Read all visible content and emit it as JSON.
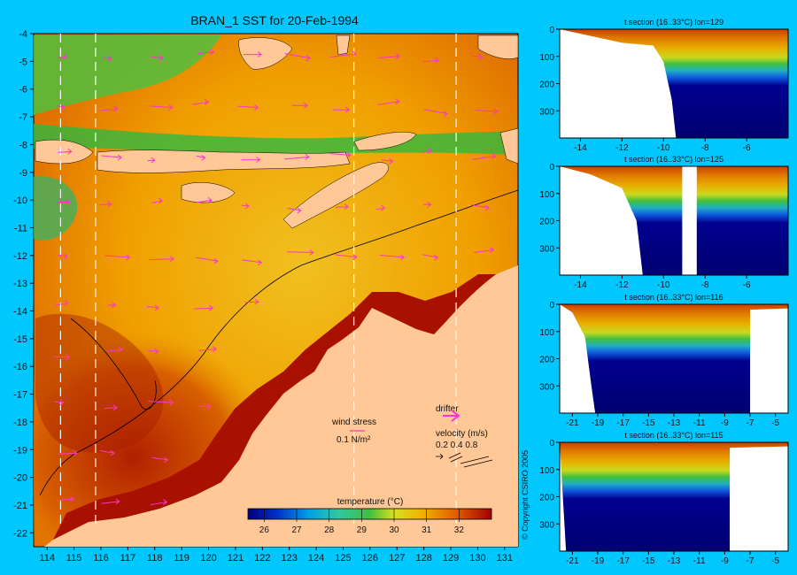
{
  "main_map": {
    "title": "BRAN_1 SST for 20-Feb-1994",
    "lon_ticks": [
      114,
      115,
      116,
      117,
      118,
      119,
      120,
      121,
      122,
      123,
      124,
      125,
      126,
      127,
      128,
      129,
      130,
      131
    ],
    "lat_ticks": [
      -4,
      -5,
      -6,
      -7,
      -8,
      -9,
      -10,
      -11,
      -12,
      -13,
      -14,
      -15,
      -16,
      -17,
      -18,
      -19,
      -20,
      -21,
      -22
    ],
    "section_lines_lon": [
      114.5,
      115.8,
      125.4,
      129.2
    ],
    "wind_stress_label": "wind stress",
    "wind_stress_scale": "0.1 N/m²",
    "drifter_label": "drifter",
    "velocity_label": "velocity (m/s)",
    "velocity_scale": "0.2 0.4 0.8",
    "colorbar_label": "temperature (°C)",
    "colorbar_ticks": [
      "26",
      "27",
      "28",
      "29",
      "30",
      "31",
      "32"
    ],
    "copyright": "© Copyright CSIRO 2005",
    "colors": {
      "background": "#00c8ff",
      "land": "#ffc896",
      "arrows": "#ff33cc"
    }
  },
  "chart_data": [
    {
      "type": "heatmap",
      "title": "BRAN_1 SST for 20-Feb-1994",
      "x_range": [
        113.5,
        131.5
      ],
      "y_range": [
        -22.5,
        -4
      ],
      "color_range": [
        25.5,
        33
      ],
      "colorbar": "temperature (°C)"
    },
    {
      "type": "heatmap",
      "title": "t section (16..33°C) lon=129",
      "xlim": [
        -15,
        -4
      ],
      "ylim": [
        0,
        400
      ],
      "xticks": [
        -14,
        -12,
        -10,
        -8,
        -6
      ],
      "yticks": [
        0,
        100,
        200,
        300
      ],
      "land_edge": [
        [
          -15,
          0
        ],
        [
          -12,
          50
        ],
        [
          -10.5,
          60
        ],
        [
          -10,
          120
        ],
        [
          -9.6,
          260
        ],
        [
          -9.4,
          400
        ]
      ]
    },
    {
      "type": "heatmap",
      "title": "t section (16..33°C) lon=125",
      "xlim": [
        -15,
        -4
      ],
      "ylim": [
        0,
        400
      ],
      "xticks": [
        -14,
        -12,
        -10,
        -8,
        -6
      ],
      "yticks": [
        0,
        100,
        200,
        300
      ],
      "land_edge": [
        [
          -15,
          0
        ],
        [
          -13.5,
          30
        ],
        [
          -12,
          80
        ],
        [
          -11.3,
          200
        ],
        [
          -11,
          400
        ]
      ],
      "gap_x": [
        -9.1,
        -8.4
      ]
    },
    {
      "type": "heatmap",
      "title": "t section (16..33°C) lon=116",
      "xlim": [
        -22,
        -4
      ],
      "ylim": [
        0,
        400
      ],
      "xticks": [
        -21,
        -19,
        -17,
        -15,
        -13,
        -11,
        -9,
        -7,
        -5
      ],
      "yticks": [
        0,
        100,
        200,
        300
      ],
      "land_edge": [
        [
          -22,
          0
        ],
        [
          -21,
          30
        ],
        [
          -20,
          120
        ],
        [
          -19.5,
          300
        ],
        [
          -19.2,
          400
        ]
      ],
      "right_land_x": -7
    },
    {
      "type": "heatmap",
      "title": "t section (16..33°C) lon=115",
      "xlim": [
        -22,
        -4
      ],
      "ylim": [
        0,
        400
      ],
      "xticks": [
        -21,
        -19,
        -17,
        -15,
        -13,
        -11,
        -9,
        -7,
        -5
      ],
      "yticks": [
        0,
        100,
        200,
        300
      ],
      "land_edge": [
        [
          -22,
          0
        ],
        [
          -21.5,
          400
        ]
      ],
      "right_land_x": -8.6
    }
  ]
}
